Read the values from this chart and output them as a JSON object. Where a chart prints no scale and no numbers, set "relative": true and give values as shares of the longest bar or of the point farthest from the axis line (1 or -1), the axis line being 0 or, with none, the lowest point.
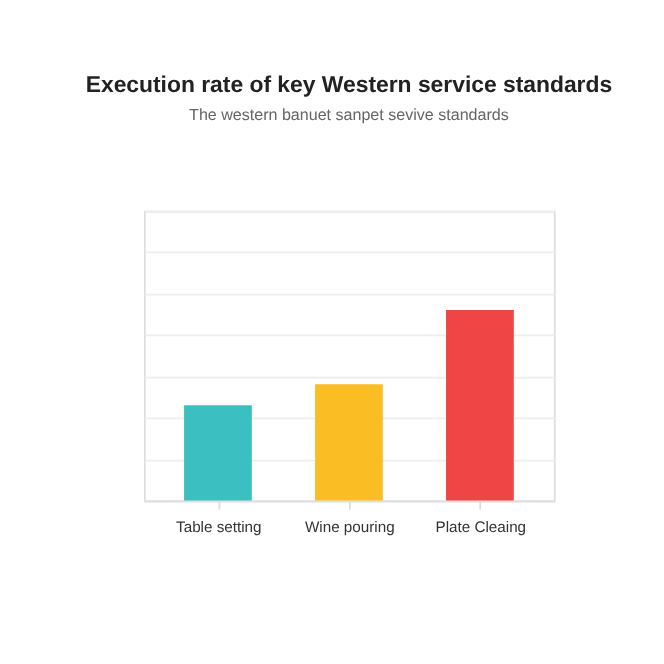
{
  "chart_data": {
    "type": "bar",
    "title": "Execution rate of key Western service standards",
    "subtitle": "The western banuet sanpet sevive standards",
    "categories": [
      "Table setting",
      "Wine pouring",
      "Plate Cleaing"
    ],
    "values": [
      0.5,
      0.61,
      1
    ],
    "colors": [
      "#3bbfc1",
      "#fbbd24",
      "#f04545"
    ],
    "relative": true,
    "grid": "y"
  }
}
